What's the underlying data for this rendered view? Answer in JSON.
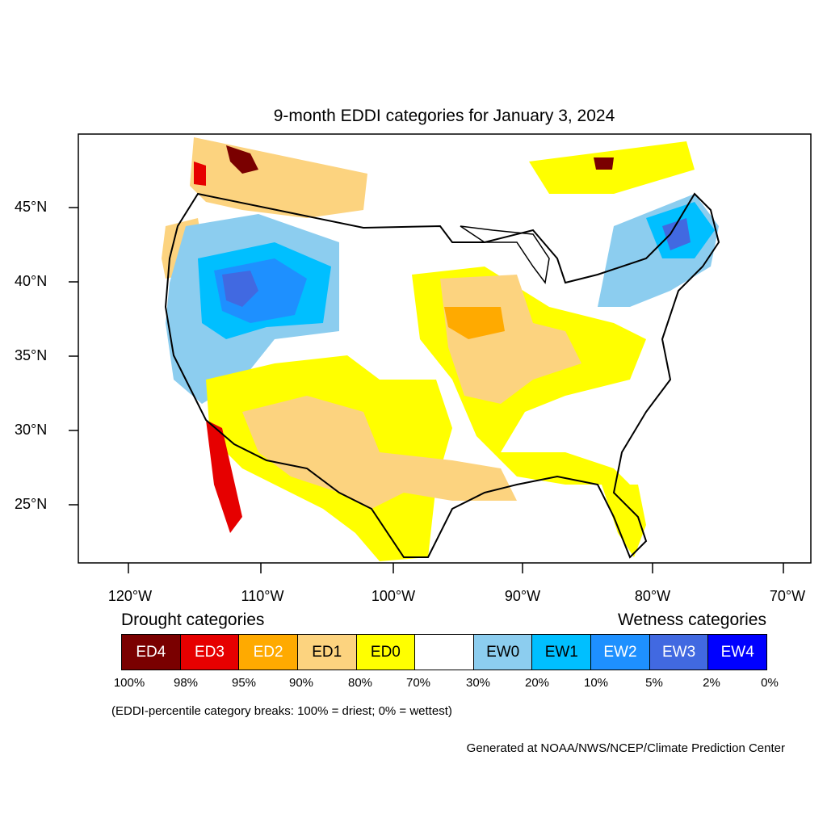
{
  "title": "9-month EDDI categories for January 3, 2024",
  "axes": {
    "latitude_labels": [
      {
        "text": "45°N",
        "value": 45
      },
      {
        "text": "40°N",
        "value": 40
      },
      {
        "text": "35°N",
        "value": 35
      },
      {
        "text": "30°N",
        "value": 30
      },
      {
        "text": "25°N",
        "value": 25
      }
    ],
    "longitude_labels": [
      {
        "text": "120°W",
        "value": -120
      },
      {
        "text": "110°W",
        "value": -110
      },
      {
        "text": "100°W",
        "value": -100
      },
      {
        "text": "90°W",
        "value": -90
      },
      {
        "text": "80°W",
        "value": -80
      },
      {
        "text": "70°W",
        "value": -70
      }
    ]
  },
  "legend": {
    "drought_heading": "Drought categories",
    "wetness_heading": "Wetness categories",
    "categories": [
      {
        "label": "ED4",
        "color": "#7a0000",
        "text_color": "#ffffff"
      },
      {
        "label": "ED3",
        "color": "#e60000",
        "text_color": "#ffffff"
      },
      {
        "label": "ED2",
        "color": "#ffaa00",
        "text_color": "#ffffff"
      },
      {
        "label": "ED1",
        "color": "#fcd37f",
        "text_color": "#000000"
      },
      {
        "label": "ED0",
        "color": "#ffff00",
        "text_color": "#000000"
      },
      {
        "label": "",
        "color": "#ffffff",
        "text_color": "#000000"
      },
      {
        "label": "EW0",
        "color": "#8ccdef",
        "text_color": "#000000"
      },
      {
        "label": "EW1",
        "color": "#00bfff",
        "text_color": "#000000"
      },
      {
        "label": "EW2",
        "color": "#1e90ff",
        "text_color": "#ffffff"
      },
      {
        "label": "EW3",
        "color": "#4169e1",
        "text_color": "#ffffff"
      },
      {
        "label": "EW4",
        "color": "#0000ff",
        "text_color": "#ffffff"
      }
    ],
    "breaks": [
      "100%",
      "98%",
      "95%",
      "90%",
      "80%",
      "70%",
      "30%",
      "20%",
      "10%",
      "5%",
      "2%",
      "0%"
    ],
    "note": "(EDDI-percentile category breaks: 100% = driest; 0% = wettest)"
  },
  "credit": "Generated at NOAA/NWS/NCEP/Climate Prediction Center",
  "colors": {
    "ED4": "#7a0000",
    "ED3": "#e60000",
    "ED2": "#ffaa00",
    "ED1": "#fcd37f",
    "ED0": "#ffff00",
    "EW0": "#8ccdef",
    "EW1": "#00bfff",
    "EW2": "#1e90ff",
    "EW3": "#4169e1",
    "EW4": "#0000ff"
  }
}
